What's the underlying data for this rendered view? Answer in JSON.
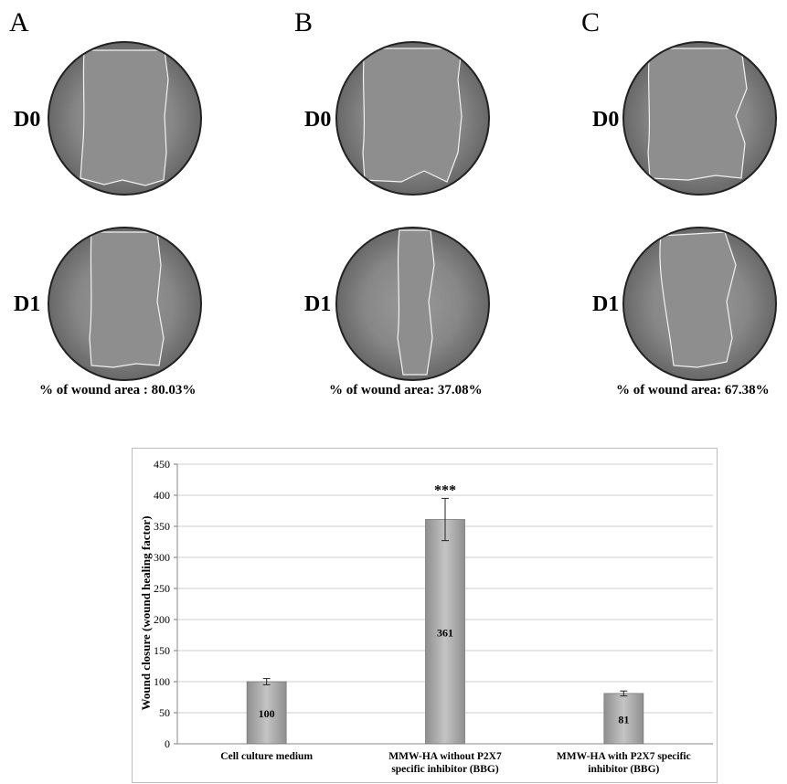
{
  "panels": [
    {
      "letter": "A",
      "day0": "D0",
      "day1": "D1",
      "caption": "% of wound area : 80.03%"
    },
    {
      "letter": "B",
      "day0": "D0",
      "day1": "D1",
      "caption": "% of wound area: 37.08%"
    },
    {
      "letter": "C",
      "day0": "D0",
      "day1": "D1",
      "caption": "% of wound area: 67.38%"
    }
  ],
  "chart_data": {
    "type": "bar",
    "ylabel": "Wound closure (wound healing factor)",
    "ylim": [
      0,
      450
    ],
    "yticks": [
      0,
      50,
      100,
      150,
      200,
      250,
      300,
      350,
      400,
      450
    ],
    "grid": true,
    "categories": [
      [
        "Cell culture medium"
      ],
      [
        "MMW-HA without P2X7",
        "specific inhibitor (BBG)"
      ],
      [
        "MMW-HA with P2X7 specific",
        "inhibitor (BBG)"
      ]
    ],
    "values": [
      100,
      361,
      81
    ],
    "data_labels": [
      "100",
      "361",
      "81"
    ],
    "errors": [
      5,
      34,
      4
    ],
    "annotations": [
      "",
      "***",
      ""
    ],
    "bar_color": "#a9a9a9"
  }
}
